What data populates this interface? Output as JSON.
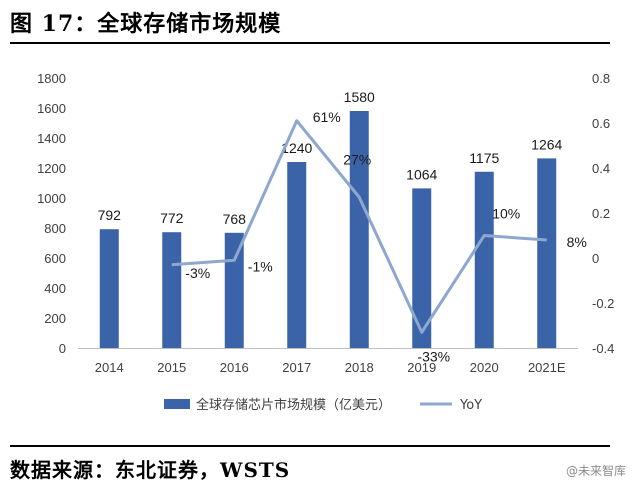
{
  "header": {
    "title": "图 17：全球存储市场规模"
  },
  "footer": {
    "source": "数据来源：东北证券，WSTS",
    "watermark": "@未来智库"
  },
  "colors": {
    "bar": "#3b64a8",
    "line": "#8ea7cf",
    "grid": "#d9d9d9"
  },
  "chart_data": {
    "type": "bar",
    "categories": [
      "2014",
      "2015",
      "2016",
      "2017",
      "2018",
      "2019",
      "2020",
      "2021E"
    ],
    "series": [
      {
        "name": "全球存储芯片市场规模（亿美元）",
        "type": "bar",
        "axis": "left",
        "values": [
          792,
          772,
          768,
          1240,
          1580,
          1064,
          1175,
          1264
        ],
        "labels": [
          "792",
          "772",
          "768",
          "1240",
          "1580",
          "1064",
          "1175",
          "1264"
        ]
      },
      {
        "name": "YoY",
        "type": "line",
        "axis": "right",
        "values": [
          null,
          -0.03,
          -0.01,
          0.61,
          0.27,
          -0.33,
          0.1,
          0.08
        ],
        "labels": [
          "",
          "-3%",
          "-1%",
          "61%",
          "27%",
          "-33%",
          "10%",
          "8%"
        ]
      }
    ],
    "y_left": {
      "min": 0,
      "max": 1800,
      "step": 200,
      "ticks": [
        "0",
        "200",
        "400",
        "600",
        "800",
        "1000",
        "1200",
        "1400",
        "1600",
        "1800"
      ]
    },
    "y_right": {
      "min": -0.4,
      "max": 0.8,
      "step": 0.2,
      "ticks": [
        "-0.4",
        "-0.2",
        "0",
        "0.2",
        "0.4",
        "0.6",
        "0.8"
      ]
    },
    "grid": false,
    "legend_position": "bottom"
  }
}
